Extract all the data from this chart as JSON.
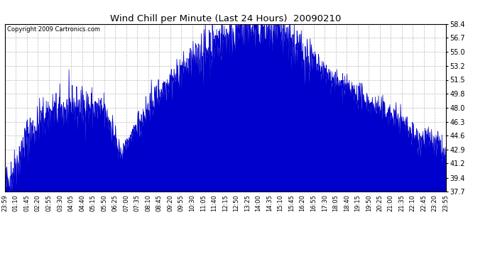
{
  "title": "Wind Chill per Minute (Last 24 Hours)  20090210",
  "copyright": "Copyright 2009 Cartronics.com",
  "line_color": "#0000CC",
  "background_color": "#ffffff",
  "grid_color": "#aaaaaa",
  "y_ticks": [
    37.7,
    39.4,
    41.2,
    42.9,
    44.6,
    46.3,
    48.0,
    49.8,
    51.5,
    53.2,
    55.0,
    56.7,
    58.4
  ],
  "y_min": 37.7,
  "y_max": 58.4,
  "x_labels": [
    "23:59",
    "01:10",
    "01:45",
    "02:20",
    "02:55",
    "03:30",
    "04:05",
    "04:40",
    "05:15",
    "05:50",
    "06:25",
    "07:00",
    "07:35",
    "08:10",
    "08:45",
    "09:20",
    "09:55",
    "10:30",
    "11:05",
    "11:40",
    "12:15",
    "12:50",
    "13:25",
    "14:00",
    "14:35",
    "15:10",
    "15:45",
    "16:20",
    "16:55",
    "17:30",
    "18:05",
    "18:40",
    "19:15",
    "19:50",
    "20:25",
    "21:00",
    "21:35",
    "22:10",
    "22:45",
    "23:20",
    "23:55"
  ],
  "num_points": 1440,
  "seed": 42
}
